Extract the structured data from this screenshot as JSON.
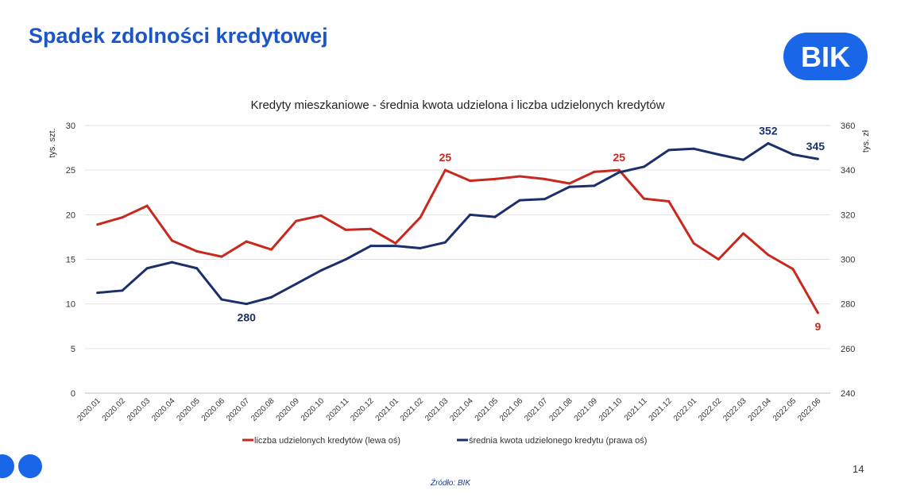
{
  "page": {
    "title": "Spadek zdolności kredytowej",
    "logo_text": "BIK",
    "page_number": "14",
    "source": "Źródło: BIK"
  },
  "colors": {
    "title": "#1a56c8",
    "red": "#c8281e",
    "navy": "#1b2f6b"
  },
  "chart_data": {
    "type": "line",
    "title": "Kredyty mieszkaniowe - średnia kwota udzielona i liczba udzielonych kredytów",
    "ylabel_left": "tys. szt.",
    "ylabel_right": "tys. zł",
    "ylim_left": [
      0,
      30
    ],
    "ylim_right": [
      240,
      360
    ],
    "yticks_left": [
      "0",
      "5",
      "10",
      "15",
      "20",
      "25",
      "30"
    ],
    "yticks_right": [
      "240",
      "260",
      "280",
      "300",
      "320",
      "340",
      "360"
    ],
    "grid": true,
    "legend_position": "bottom",
    "categories": [
      "2020.01",
      "2020.02",
      "2020.03",
      "2020.04",
      "2020.05",
      "2020.06",
      "2020.07",
      "2020.08",
      "2020.09",
      "2020.10",
      "2020.11",
      "2020.12",
      "2021.01",
      "2021.02",
      "2021.03",
      "2021.04",
      "2021.05",
      "2021.06",
      "2021.07",
      "2021.08",
      "2021.09",
      "2021.10",
      "2021.11",
      "2021.12",
      "2022.01",
      "2022.02",
      "2022.03",
      "2022.04",
      "2022.05",
      "2022.06"
    ],
    "series": [
      {
        "name": "liczba udzielonych kredytów (lewa oś)",
        "axis": "left",
        "color": "#c8281e",
        "values": [
          18.9,
          19.7,
          21.0,
          17.1,
          15.9,
          15.3,
          17.0,
          16.1,
          19.3,
          19.9,
          18.3,
          18.4,
          16.8,
          19.7,
          25.0,
          23.8,
          24.0,
          24.3,
          24.0,
          23.5,
          24.8,
          25.0,
          21.8,
          21.5,
          16.8,
          15.0,
          17.9,
          15.5,
          13.9,
          9.0
        ]
      },
      {
        "name": "średnia kwota udzielonego kredytu (prawa oś)",
        "axis": "right",
        "color": "#1b2f6b",
        "values": [
          285,
          286,
          296,
          298.7,
          296,
          282,
          280,
          283,
          289,
          295,
          300,
          306,
          306,
          305,
          307.6,
          320,
          319,
          326.5,
          327,
          332.5,
          333,
          339,
          341.5,
          349,
          349.6,
          347,
          344.6,
          352,
          347,
          345
        ]
      }
    ],
    "annotations": [
      {
        "series": 0,
        "index": 14,
        "text": "25",
        "pos": "above"
      },
      {
        "series": 0,
        "index": 21,
        "text": "25",
        "pos": "above"
      },
      {
        "series": 0,
        "index": 29,
        "text": "9",
        "pos": "below"
      },
      {
        "series": 1,
        "index": 6,
        "text": "280",
        "pos": "below"
      },
      {
        "series": 1,
        "index": 27,
        "text": "352",
        "pos": "above"
      },
      {
        "series": 1,
        "index": 29,
        "text": "345",
        "pos": "above"
      }
    ]
  }
}
